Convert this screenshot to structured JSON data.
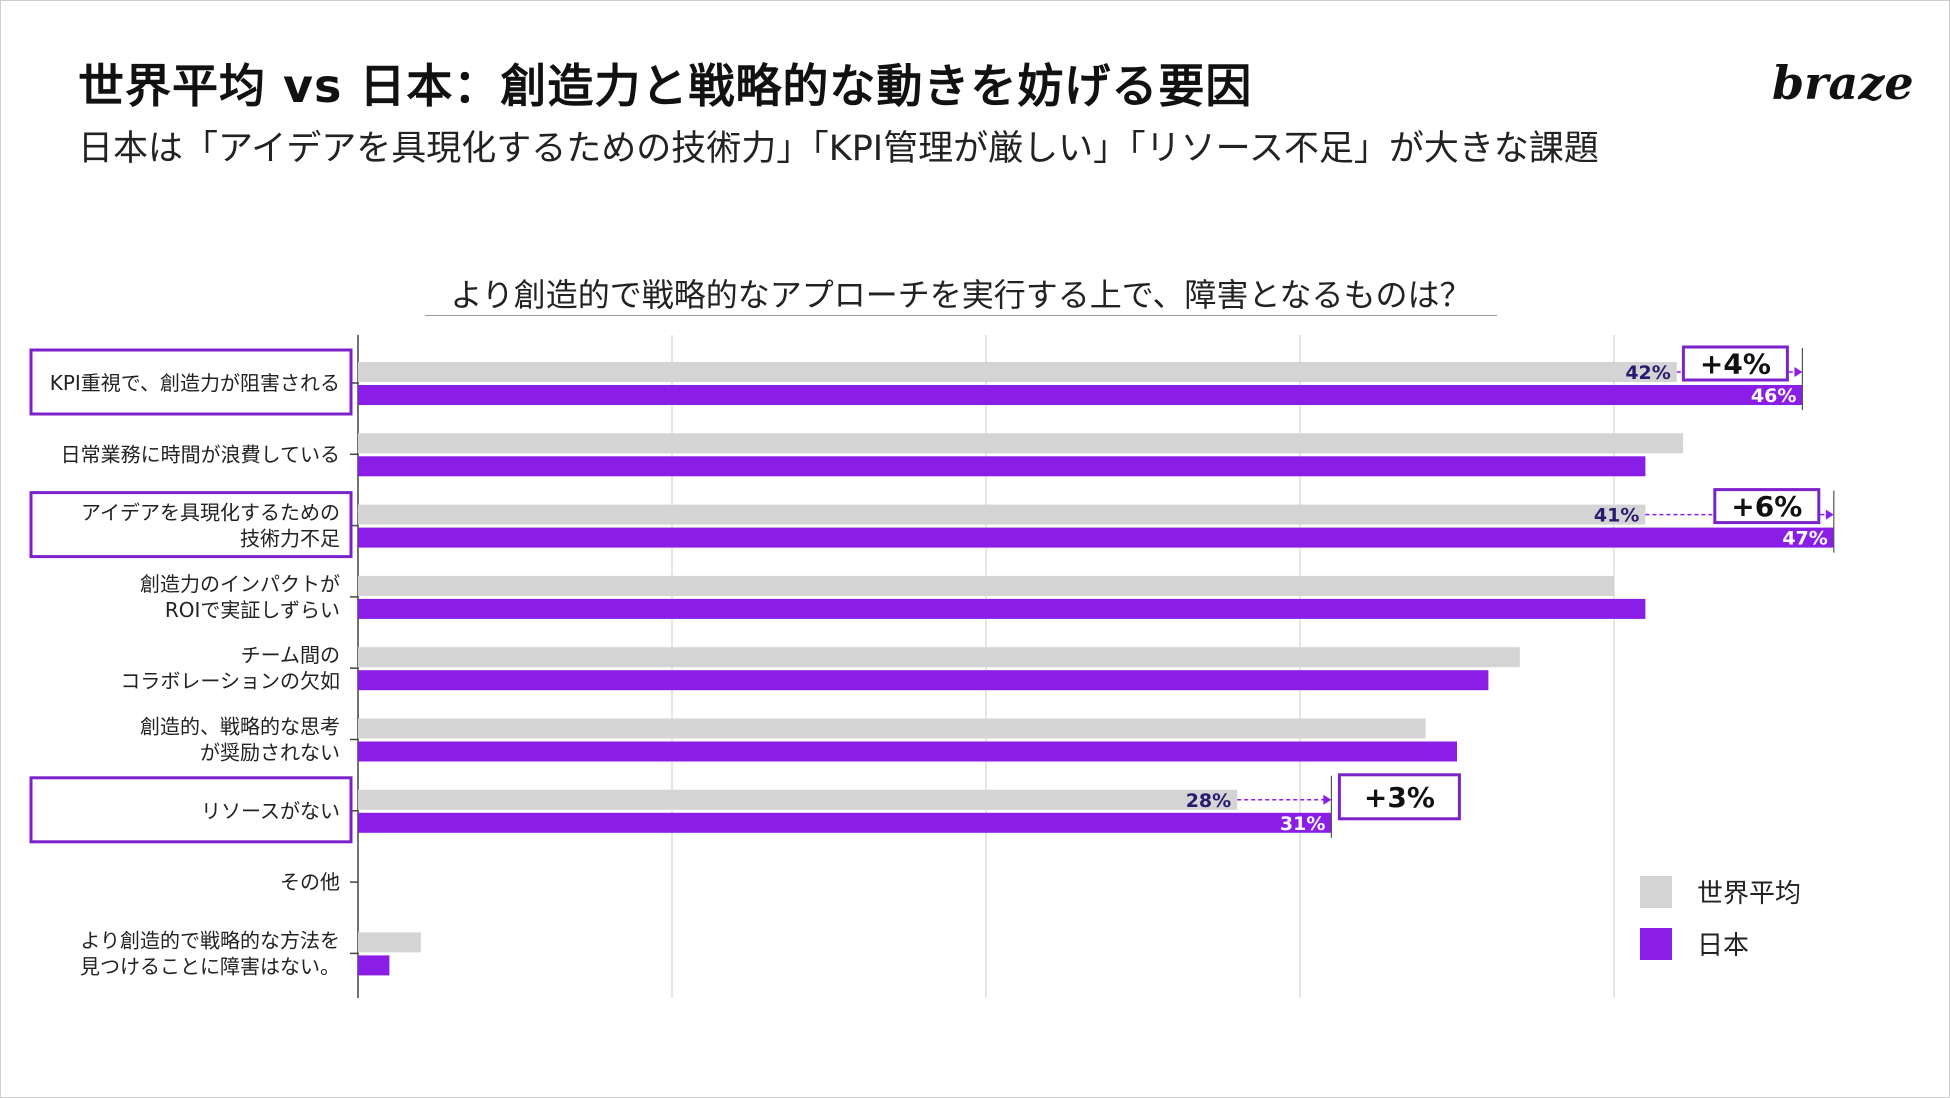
{
  "header": {
    "title": "世界平均 vs 日本：創造力と戦略的な動きを妨げる要因",
    "subtitle": "日本は「アイデアを具現化するための技術力」「KPI管理が厳しい」「リソース不足」が大きな課題",
    "logo": "braze"
  },
  "colors": {
    "world": "#d4d4d4",
    "japan": "#8a1ee6",
    "highlight_border": "#7b22c8",
    "world_label": "#2a1a6e",
    "japan_label": "#ffffff"
  },
  "chart_data": {
    "type": "bar",
    "orientation": "horizontal",
    "title": "より創造的で戦略的なアプローチを実行する上で、障害となるものは？",
    "categories": [
      "KPI重視で、創造力が阻害される",
      "日常業務に時間が浪費している",
      "アイデアを具現化するための\n技術力不足",
      "創造力のインパクトが\nROIで実証しずらい",
      "チーム間の\nコラボレーションの欠如",
      "創造的、戦略的な思考\nが奨励されない",
      "リソースがない",
      "その他",
      "より創造的で戦略的な方法を\n見つけることに障害はない。"
    ],
    "series": [
      {
        "name": "世界平均",
        "values": [
          42,
          42.2,
          41,
          40,
          37,
          34,
          28,
          0,
          2
        ]
      },
      {
        "name": "日本",
        "values": [
          46,
          41,
          47,
          41,
          36,
          35,
          31,
          0,
          1
        ]
      }
    ],
    "xlim": [
      0,
      50
    ],
    "grid": true,
    "legend": "bottom-right",
    "highlighted_categories": [
      0,
      2,
      6
    ],
    "value_labels": [
      {
        "category": 0,
        "world": "42%",
        "japan": "46%",
        "delta": "+4%"
      },
      {
        "category": 2,
        "world": "41%",
        "japan": "47%",
        "delta": "+6%"
      },
      {
        "category": 6,
        "world": "28%",
        "japan": "31%",
        "delta": "+3%"
      }
    ]
  }
}
